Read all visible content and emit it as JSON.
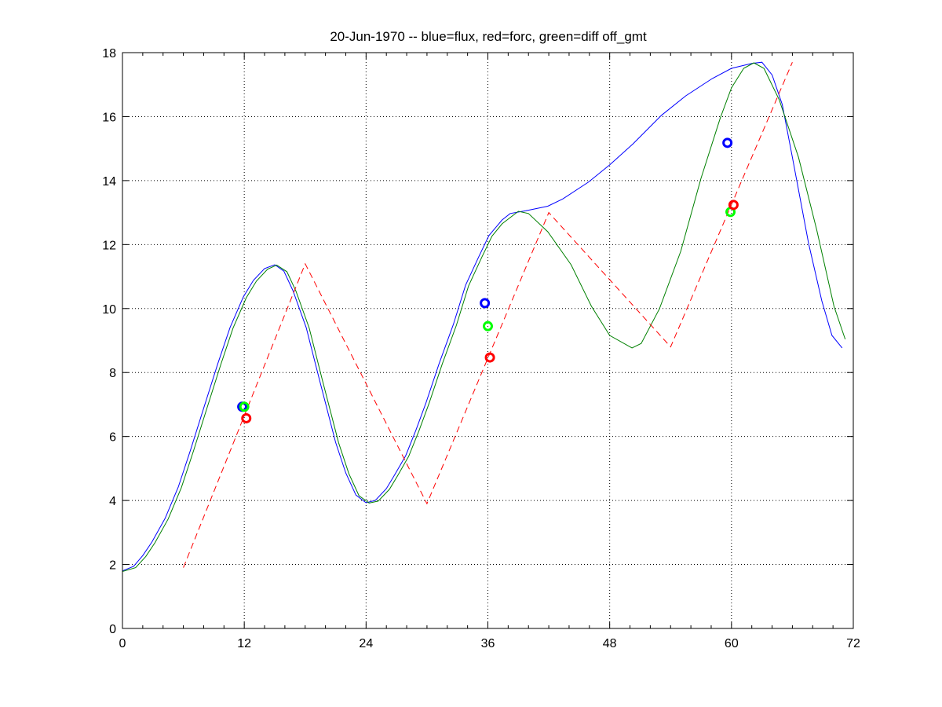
{
  "chart_data": {
    "type": "line",
    "title": "20-Jun-1970 -- blue=flux, red=forc, green=diff off_gmt",
    "xlabel": "",
    "ylabel": "",
    "xlim": [
      0,
      72
    ],
    "ylim": [
      0,
      18
    ],
    "xticks": [
      0,
      12,
      24,
      36,
      48,
      60,
      72
    ],
    "yticks": [
      0,
      2,
      4,
      6,
      8,
      10,
      12,
      14,
      16,
      18
    ],
    "x_minor_tick_step": 2,
    "grid": true,
    "colors": {
      "flux": "#0000ff",
      "forc": "#ff0000",
      "diff": "#008000",
      "diff_marker": "#00ff00"
    },
    "series": [
      {
        "key": "flux",
        "style": "solid",
        "color": "#0000ff",
        "points": [
          [
            0,
            1.8
          ],
          [
            1.1,
            1.94
          ],
          [
            2,
            2.28
          ],
          [
            2.9,
            2.7
          ],
          [
            4.2,
            3.44
          ],
          [
            5.5,
            4.42
          ],
          [
            6.7,
            5.57
          ],
          [
            8,
            6.88
          ],
          [
            9.4,
            8.28
          ],
          [
            10.6,
            9.41
          ],
          [
            11.9,
            10.36
          ],
          [
            12.9,
            10.88
          ],
          [
            14,
            11.25
          ],
          [
            15,
            11.37
          ],
          [
            15.9,
            11.17
          ],
          [
            16.8,
            10.56
          ],
          [
            18.1,
            9.41
          ],
          [
            19.4,
            7.78
          ],
          [
            21,
            5.82
          ],
          [
            22,
            4.86
          ],
          [
            23,
            4.17
          ],
          [
            24,
            3.93
          ],
          [
            24.9,
            4.0
          ],
          [
            26,
            4.37
          ],
          [
            26.8,
            4.79
          ],
          [
            27.9,
            5.4
          ],
          [
            28.9,
            6.19
          ],
          [
            29.9,
            7.05
          ],
          [
            31.2,
            8.28
          ],
          [
            32.6,
            9.5
          ],
          [
            33.8,
            10.73
          ],
          [
            35.1,
            11.62
          ],
          [
            36.1,
            12.28
          ],
          [
            37.4,
            12.77
          ],
          [
            38.2,
            12.97
          ],
          [
            39.75,
            13.06
          ],
          [
            41.9,
            13.2
          ],
          [
            43.4,
            13.43
          ],
          [
            45.9,
            13.95
          ],
          [
            48,
            14.49
          ],
          [
            50.3,
            15.15
          ],
          [
            53.1,
            16.04
          ],
          [
            55.5,
            16.65
          ],
          [
            58.1,
            17.19
          ],
          [
            60,
            17.51
          ],
          [
            62,
            17.66
          ],
          [
            63,
            17.7
          ],
          [
            64,
            17.3
          ],
          [
            65,
            16.38
          ],
          [
            66,
            14.73
          ],
          [
            67.6,
            12.03
          ],
          [
            68.9,
            10.24
          ],
          [
            69.9,
            9.16
          ],
          [
            70.9,
            8.77
          ]
        ]
      },
      {
        "key": "diff",
        "style": "solid",
        "color": "#008000",
        "points": [
          [
            0,
            1.78
          ],
          [
            1.3,
            1.9
          ],
          [
            2.3,
            2.25
          ],
          [
            3.2,
            2.68
          ],
          [
            4.5,
            3.42
          ],
          [
            5.8,
            4.4
          ],
          [
            7,
            5.55
          ],
          [
            8.3,
            6.86
          ],
          [
            9.7,
            8.26
          ],
          [
            10.9,
            9.39
          ],
          [
            12.2,
            10.34
          ],
          [
            13.2,
            10.86
          ],
          [
            14.3,
            11.23
          ],
          [
            15.2,
            11.36
          ],
          [
            16.2,
            11.15
          ],
          [
            17.1,
            10.54
          ],
          [
            18.4,
            9.39
          ],
          [
            19.7,
            7.76
          ],
          [
            21.3,
            5.8
          ],
          [
            22.3,
            4.84
          ],
          [
            23.3,
            4.15
          ],
          [
            24.3,
            3.92
          ],
          [
            25.2,
            3.98
          ],
          [
            26.3,
            4.35
          ],
          [
            27.1,
            4.77
          ],
          [
            28.2,
            5.38
          ],
          [
            29.2,
            6.17
          ],
          [
            30.2,
            7.03
          ],
          [
            31.5,
            8.26
          ],
          [
            32.9,
            9.48
          ],
          [
            34.1,
            10.71
          ],
          [
            35.4,
            11.6
          ],
          [
            36.4,
            12.26
          ],
          [
            37.4,
            12.65
          ],
          [
            39,
            13.04
          ],
          [
            40,
            12.97
          ],
          [
            41.9,
            12.4
          ],
          [
            44.2,
            11.37
          ],
          [
            46.2,
            10.07
          ],
          [
            48,
            9.16
          ],
          [
            50.2,
            8.77
          ],
          [
            51.1,
            8.91
          ],
          [
            52.9,
            9.99
          ],
          [
            55,
            11.79
          ],
          [
            57,
            14.07
          ],
          [
            58.9,
            15.96
          ],
          [
            60,
            16.9
          ],
          [
            61.2,
            17.51
          ],
          [
            62.2,
            17.68
          ],
          [
            63.2,
            17.51
          ],
          [
            64.7,
            16.53
          ],
          [
            66.6,
            14.73
          ],
          [
            68.4,
            12.45
          ],
          [
            70.1,
            10.07
          ],
          [
            71.2,
            9.04
          ]
        ]
      },
      {
        "key": "forc",
        "style": "dashed",
        "color": "#ff0000",
        "points": [
          [
            6,
            1.9
          ],
          [
            18,
            11.4
          ],
          [
            30,
            3.9
          ],
          [
            42,
            13.0
          ],
          [
            54,
            8.8
          ],
          [
            66,
            17.7
          ]
        ]
      }
    ],
    "markers": [
      {
        "key": "flux",
        "color": "#0000ff",
        "points": [
          [
            11.8,
            6.93
          ],
          [
            35.7,
            10.17
          ],
          [
            59.6,
            15.18
          ]
        ]
      },
      {
        "key": "diff",
        "color": "#00ff00",
        "points": [
          [
            12.0,
            6.93
          ],
          [
            36.0,
            9.45
          ],
          [
            59.9,
            13.02
          ]
        ]
      },
      {
        "key": "forc",
        "color": "#ff0000",
        "points": [
          [
            12.2,
            6.57
          ],
          [
            36.2,
            8.47
          ],
          [
            60.2,
            13.24
          ]
        ]
      }
    ]
  }
}
